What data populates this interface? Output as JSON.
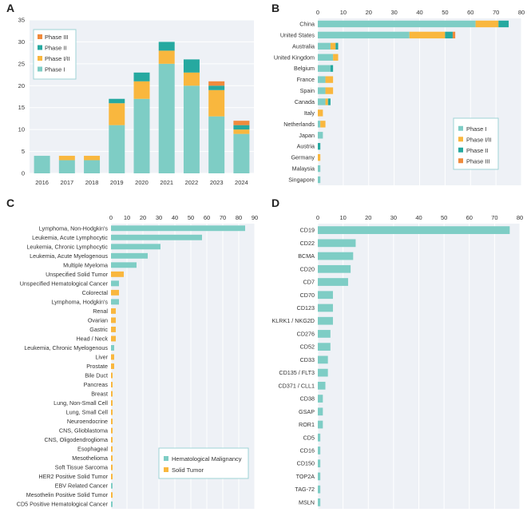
{
  "colors": {
    "phase_i": "#7ecdc5",
    "phase_i_ii": "#f9b73e",
    "phase_ii": "#26a9a0",
    "phase_iii": "#f08a3c",
    "hematological": "#7ecdc5",
    "solid": "#f9b73e"
  },
  "chart_data": [
    {
      "panel": "A",
      "type": "bar",
      "stacked": true,
      "orientation": "vertical",
      "categories": [
        "2016",
        "2017",
        "2018",
        "2019",
        "2020",
        "2021",
        "2022",
        "2023",
        "2024"
      ],
      "series": [
        {
          "name": "Phase I",
          "color": "#7ecdc5",
          "values": [
            4,
            3,
            3,
            11,
            17,
            25,
            20,
            13,
            9
          ]
        },
        {
          "name": "Phase I/II",
          "color": "#f9b73e",
          "values": [
            0,
            1,
            1,
            5,
            4,
            3,
            3,
            6,
            1
          ]
        },
        {
          "name": "Phase II",
          "color": "#26a9a0",
          "values": [
            0,
            0,
            0,
            1,
            2,
            2,
            3,
            1,
            1
          ]
        },
        {
          "name": "Phase III",
          "color": "#f08a3c",
          "values": [
            0,
            0,
            0,
            0,
            0,
            0,
            0,
            1,
            1
          ]
        }
      ],
      "ylim": [
        0,
        35
      ],
      "yticks": [
        "0",
        "5",
        "10",
        "15",
        "20",
        "25",
        "30",
        "35"
      ],
      "legend": [
        "Phase III",
        "Phase II",
        "Phase I/II",
        "Phase I"
      ],
      "legend_position": "top-left"
    },
    {
      "panel": "B",
      "type": "bar",
      "stacked": true,
      "orientation": "horizontal",
      "categories": [
        "China",
        "United States",
        "Australia",
        "United Kingdom",
        "Belgium",
        "France",
        "Spain",
        "Canada",
        "Italy",
        "Netherlands",
        "Japan",
        "Austria",
        "Germany",
        "Malaysia",
        "Singapore"
      ],
      "series": [
        {
          "name": "Phase I",
          "color": "#7ecdc5",
          "values": [
            62,
            36,
            5,
            6,
            5,
            3,
            3,
            3,
            0,
            1,
            2,
            0,
            0,
            1,
            1
          ]
        },
        {
          "name": "Phase I/II",
          "color": "#f9b73e",
          "values": [
            9,
            14,
            2,
            2,
            0,
            3,
            3,
            1,
            2,
            2,
            0,
            0,
            1,
            0,
            0
          ]
        },
        {
          "name": "Phase II",
          "color": "#26a9a0",
          "values": [
            4,
            3,
            1,
            0,
            1,
            0,
            0,
            1,
            0,
            0,
            0,
            1,
            0,
            0,
            0
          ]
        },
        {
          "name": "Phase III",
          "color": "#f08a3c",
          "values": [
            0,
            1,
            0,
            0,
            0,
            0,
            0,
            0,
            0,
            0,
            0,
            0,
            0,
            0,
            0
          ]
        }
      ],
      "xlim": [
        0,
        80
      ],
      "xticks": [
        "0",
        "10",
        "20",
        "30",
        "40",
        "50",
        "60",
        "70",
        "80"
      ],
      "legend": [
        "Phase I",
        "Phase  I/II",
        "Phase II",
        "Phase III"
      ],
      "legend_position": "bottom-right"
    },
    {
      "panel": "C",
      "type": "bar",
      "stacked": false,
      "orientation": "horizontal",
      "categories": [
        "Lymphoma, Non-Hodgkin's",
        "Leukemia, Acute Lymphocytic",
        "Leukemia, Chronic Lymphocytic",
        "Leukemia, Acute Myelogenous",
        "Multiple Myeloma",
        "Unspecified Solid Tumor",
        "Unspecified Hematological Cancer",
        "Colorectal",
        "Lymphoma, Hodgkin's",
        "Renal",
        "Ovarian",
        "Gastric",
        "Head / Neck",
        "Leukemia, Chronic Myelogenous",
        "Liver",
        "Prostate",
        "Bile Duct",
        "Pancreas",
        "Breast",
        "Lung, Non-Small Cell",
        "Lung, Small Cell",
        "Neuroendocrine",
        "CNS, Glioblastoma",
        "CNS, Oligodendroglioma",
        "Esophageal",
        "Mesothelioma",
        "Soft Tissue Sarcoma",
        "HER2 Positive Solid Tumor",
        "EBV Related Cancer",
        "Mesothelin Positive Solid Tumor",
        "CD5 Positive Hematological Cancer"
      ],
      "values": [
        84,
        57,
        31,
        23,
        16,
        8,
        5,
        5,
        5,
        3,
        3,
        3,
        3,
        2,
        2,
        2,
        1,
        1,
        1,
        1,
        1,
        1,
        1,
        1,
        1,
        1,
        1,
        1,
        1,
        1,
        1
      ],
      "groups": [
        "Hematological Malignancy",
        "Hematological Malignancy",
        "Hematological Malignancy",
        "Hematological Malignancy",
        "Hematological Malignancy",
        "Solid Tumor",
        "Hematological Malignancy",
        "Solid Tumor",
        "Hematological Malignancy",
        "Solid Tumor",
        "Solid Tumor",
        "Solid Tumor",
        "Solid Tumor",
        "Hematological Malignancy",
        "Solid Tumor",
        "Solid Tumor",
        "Solid Tumor",
        "Solid Tumor",
        "Solid Tumor",
        "Solid Tumor",
        "Solid Tumor",
        "Solid Tumor",
        "Solid Tumor",
        "Solid Tumor",
        "Solid Tumor",
        "Solid Tumor",
        "Solid Tumor",
        "Solid Tumor",
        "Hematological Malignancy",
        "Solid Tumor",
        "Hematological Malignancy"
      ],
      "xlim": [
        0,
        90
      ],
      "xticks": [
        "0",
        "10",
        "20",
        "30",
        "40",
        "50",
        "60",
        "70",
        "80",
        "90"
      ],
      "legend": [
        "Hematological Malignancy",
        "Solid Tumor"
      ],
      "legend_position": "bottom-right"
    },
    {
      "panel": "D",
      "type": "bar",
      "stacked": false,
      "orientation": "horizontal",
      "categories": [
        "CD19",
        "CD22",
        "BCMA",
        "CD20",
        "CD7",
        "CD70",
        "CD123",
        "KLRK1 / NKG2D",
        "CD276",
        "CD52",
        "CD33",
        "CD135 / FLT3",
        "CD371 / CLL1",
        "CD38",
        "GSAP",
        "ROR1",
        "CD5",
        "CD16",
        "CD150",
        "TOP2A",
        "TAG-72",
        "MSLN"
      ],
      "values": [
        76,
        15,
        14,
        13,
        12,
        6,
        6,
        6,
        5,
        5,
        4,
        4,
        3,
        2,
        2,
        2,
        1,
        1,
        1,
        1,
        1,
        1
      ],
      "xlim": [
        0,
        80
      ],
      "xticks": [
        "0",
        "10",
        "20",
        "30",
        "40",
        "50",
        "60",
        "70",
        "80"
      ]
    }
  ]
}
